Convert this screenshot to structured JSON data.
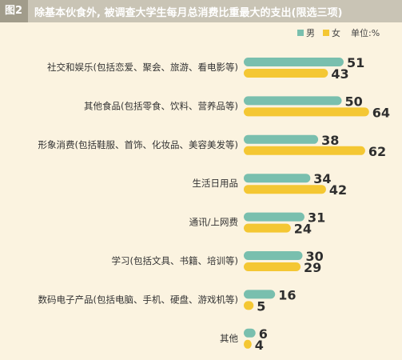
{
  "header": {
    "figure_no": "图2",
    "title": "除基本伙食外, 被调查大学生每月总消费比重最大的支出(限选三项)"
  },
  "legend": {
    "unit": "单位:%"
  },
  "colors": {
    "male": "#79bfae",
    "female": "#f4c733",
    "header_bg": "#c9c4b5",
    "figure_no_bg": "#a19c8b",
    "background": "#fbf3e0"
  },
  "chart_data": {
    "type": "bar",
    "orientation": "horizontal",
    "categories": [
      "社交和娱乐(包括恋爱、聚会、旅游、看电影等)",
      "其他食品(包括零食、饮料、营养品等)",
      "形象消费(包括鞋服、首饰、化妆品、美容美发等)",
      "生活日用品",
      "通讯/上网费",
      "学习(包括文具、书籍、培训等)",
      "数码电子产品(包括电脑、手机、硬盘、游戏机等)",
      "其他"
    ],
    "series": [
      {
        "name": "男",
        "values": [
          51,
          50,
          38,
          34,
          31,
          30,
          16,
          6
        ]
      },
      {
        "name": "女",
        "values": [
          43,
          64,
          62,
          42,
          24,
          29,
          5,
          4
        ]
      }
    ],
    "unit": "%",
    "legend_position": "top-right",
    "grid": false
  }
}
